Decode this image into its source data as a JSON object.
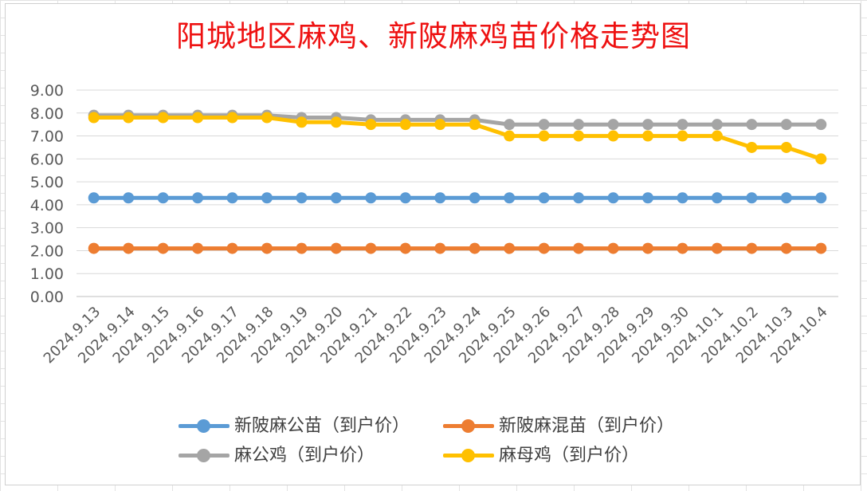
{
  "chart_data": {
    "type": "line",
    "title": "阳城地区麻鸡、新陂麻鸡苗价格走势图",
    "xlabel": "",
    "ylabel": "",
    "ylim": [
      0,
      9
    ],
    "yticks": [
      "0.00",
      "1.00",
      "2.00",
      "3.00",
      "4.00",
      "5.00",
      "6.00",
      "7.00",
      "8.00",
      "9.00"
    ],
    "grid": true,
    "legend_position": "bottom",
    "categories": [
      "2024.9.13",
      "2024.9.14",
      "2024.9.15",
      "2024.9.16",
      "2024.9.17",
      "2024.9.18",
      "2024.9.19",
      "2024.9.20",
      "2024.9.21",
      "2024.9.22",
      "2024.9.23",
      "2024.9.24",
      "2024.9.25",
      "2024.9.26",
      "2024.9.27",
      "2024.9.28",
      "2024.9.29",
      "2024.9.30",
      "2024.10.1",
      "2024.10.2",
      "2024.10.3",
      "2024.10.4"
    ],
    "series": [
      {
        "name": "新陂麻公苗（到户价）",
        "color": "#5b9bd5",
        "values": [
          4.3,
          4.3,
          4.3,
          4.3,
          4.3,
          4.3,
          4.3,
          4.3,
          4.3,
          4.3,
          4.3,
          4.3,
          4.3,
          4.3,
          4.3,
          4.3,
          4.3,
          4.3,
          4.3,
          4.3,
          4.3,
          4.3
        ]
      },
      {
        "name": "新陂麻混苗（到户价）",
        "color": "#ed7d31",
        "values": [
          2.1,
          2.1,
          2.1,
          2.1,
          2.1,
          2.1,
          2.1,
          2.1,
          2.1,
          2.1,
          2.1,
          2.1,
          2.1,
          2.1,
          2.1,
          2.1,
          2.1,
          2.1,
          2.1,
          2.1,
          2.1,
          2.1
        ]
      },
      {
        "name": "麻公鸡（到户价）",
        "color": "#a5a5a5",
        "values": [
          7.9,
          7.9,
          7.9,
          7.9,
          7.9,
          7.9,
          7.8,
          7.8,
          7.7,
          7.7,
          7.7,
          7.7,
          7.5,
          7.5,
          7.5,
          7.5,
          7.5,
          7.5,
          7.5,
          7.5,
          7.5,
          7.5
        ]
      },
      {
        "name": "麻母鸡（到户价）",
        "color": "#ffc000",
        "values": [
          7.8,
          7.8,
          7.8,
          7.8,
          7.8,
          7.8,
          7.6,
          7.6,
          7.5,
          7.5,
          7.5,
          7.5,
          7.0,
          7.0,
          7.0,
          7.0,
          7.0,
          7.0,
          7.0,
          6.5,
          6.5,
          6.0
        ]
      }
    ]
  }
}
